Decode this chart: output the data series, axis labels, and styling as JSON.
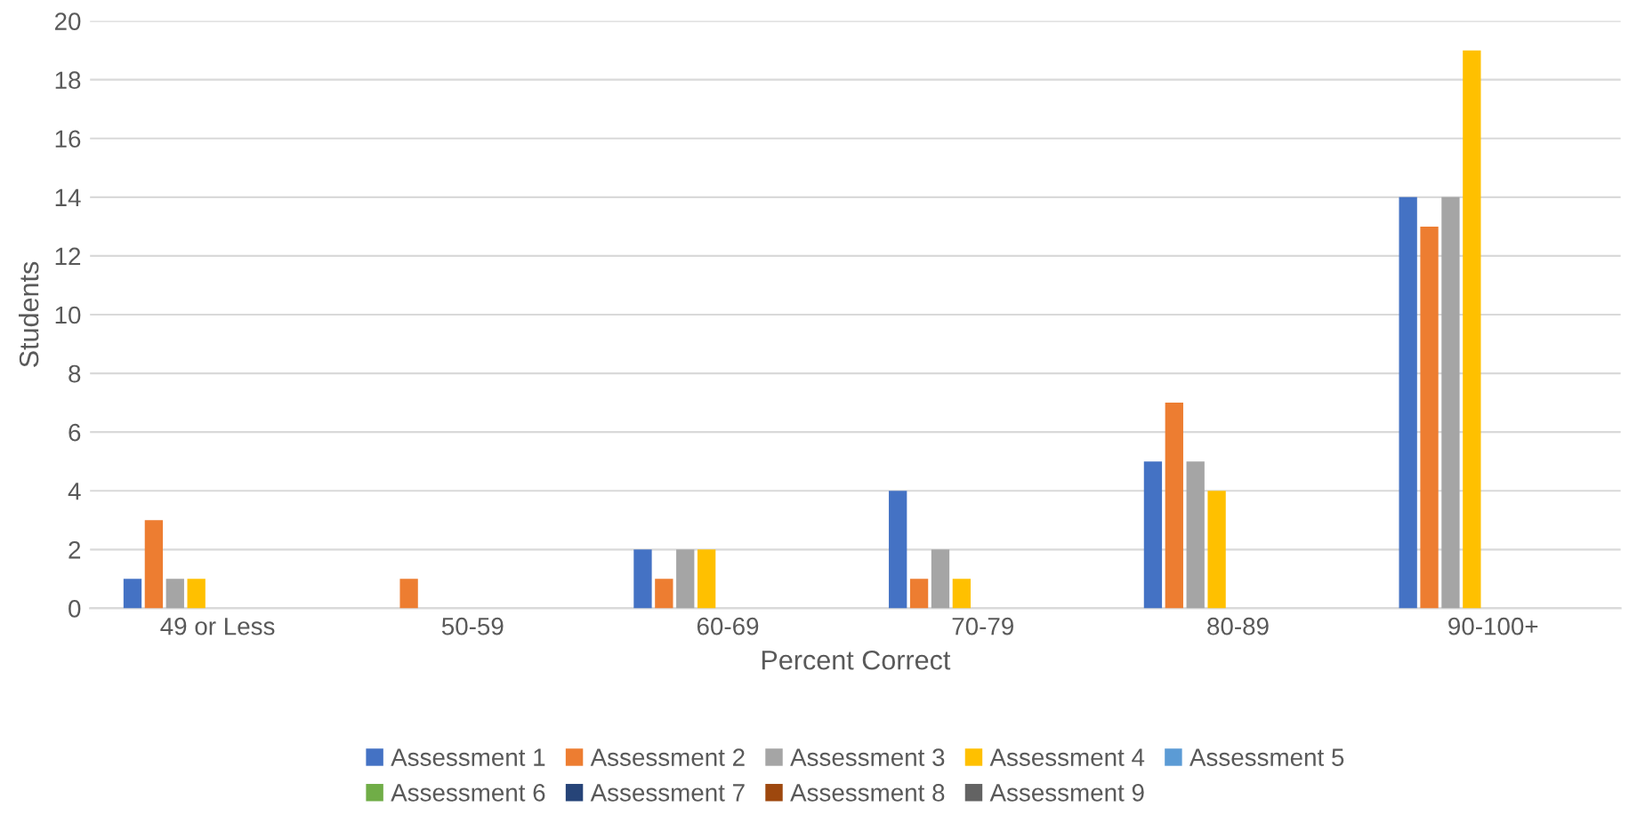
{
  "chart_data": {
    "type": "bar",
    "xlabel": "Percent Correct",
    "ylabel": "Students",
    "categories": [
      "49 or Less",
      "50-59",
      "60-69",
      "70-79",
      "80-89",
      "90-100+"
    ],
    "series": [
      {
        "name": "Assessment 1",
        "color": "#4472c4",
        "values": [
          1,
          0,
          2,
          4,
          5,
          14
        ]
      },
      {
        "name": "Assessment 2",
        "color": "#ed7d31",
        "values": [
          3,
          1,
          1,
          1,
          7,
          13
        ]
      },
      {
        "name": "Assessment 3",
        "color": "#a5a5a5",
        "values": [
          1,
          0,
          2,
          2,
          5,
          14
        ]
      },
      {
        "name": "Assessment 4",
        "color": "#ffc000",
        "values": [
          1,
          0,
          2,
          1,
          4,
          19
        ]
      },
      {
        "name": "Assessment 5",
        "color": "#5b9bd5",
        "values": [
          null,
          null,
          null,
          null,
          null,
          null
        ]
      },
      {
        "name": "Assessment 6",
        "color": "#70ad47",
        "values": [
          null,
          null,
          null,
          null,
          null,
          null
        ]
      },
      {
        "name": "Assessment 7",
        "color": "#264478",
        "values": [
          null,
          null,
          null,
          null,
          null,
          null
        ]
      },
      {
        "name": "Assessment 8",
        "color": "#9e480e",
        "values": [
          null,
          null,
          null,
          null,
          null,
          null
        ]
      },
      {
        "name": "Assessment 9",
        "color": "#636363",
        "values": [
          null,
          null,
          null,
          null,
          null,
          null
        ]
      }
    ],
    "ylim": [
      0,
      20
    ],
    "yticks": [
      0,
      2,
      4,
      6,
      8,
      10,
      12,
      14,
      16,
      18,
      20
    ],
    "grid": "y",
    "legend": "bottom"
  }
}
